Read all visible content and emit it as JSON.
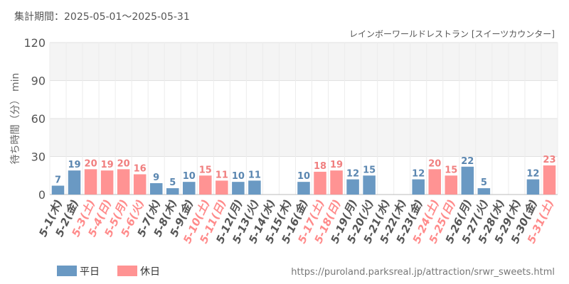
{
  "header": {
    "period": "集計期間：2025-05-01～2025-05-31",
    "subtitle": "レインボーワールドレストラン [スイーツカウンター]",
    "ylabel": "待ち時間（分） min"
  },
  "legend": {
    "weekday": "平日",
    "holiday": "休日"
  },
  "footer": {
    "url": "https://puroland.parksreal.jp/attraction/srwr_sweets.html"
  },
  "colors": {
    "weekday_bar": "#6a99c3",
    "holiday_bar": "#ff9393",
    "weekday_text": "#555555",
    "holiday_text": "#ff8a8a",
    "value_weekday": "#5a86b0",
    "value_holiday": "#f07f7f"
  },
  "chart_data": {
    "type": "bar",
    "ylim": [
      0,
      120
    ],
    "yticks": [
      0,
      30,
      60,
      90,
      120
    ],
    "ylabel": "待ち時間（分） min",
    "categories": [
      "5-1(木)",
      "5-2(金)",
      "5-3(土)",
      "5-4(日)",
      "5-5(月)",
      "5-6(火)",
      "5-7(水)",
      "5-8(木)",
      "5-9(金)",
      "5-10(土)",
      "5-11(日)",
      "5-12(月)",
      "5-13(火)",
      "5-14(水)",
      "5-15(木)",
      "5-16(金)",
      "5-17(土)",
      "5-18(日)",
      "5-19(月)",
      "5-20(火)",
      "5-21(水)",
      "5-22(木)",
      "5-23(金)",
      "5-24(土)",
      "5-25(日)",
      "5-26(月)",
      "5-27(火)",
      "5-28(水)",
      "5-29(木)",
      "5-30(金)",
      "5-31(土)"
    ],
    "holiday": [
      false,
      false,
      true,
      true,
      true,
      true,
      false,
      false,
      false,
      true,
      true,
      false,
      false,
      false,
      false,
      false,
      true,
      true,
      false,
      false,
      false,
      false,
      false,
      true,
      true,
      false,
      false,
      false,
      false,
      false,
      true
    ],
    "values": [
      7,
      19,
      20,
      19,
      20,
      16,
      9,
      5,
      10,
      15,
      11,
      10,
      11,
      null,
      null,
      10,
      18,
      19,
      12,
      15,
      null,
      null,
      12,
      20,
      15,
      22,
      5,
      null,
      null,
      12,
      23
    ],
    "series": [
      {
        "name": "平日",
        "color": "#6a99c3"
      },
      {
        "name": "休日",
        "color": "#ff9393"
      }
    ],
    "grid": true
  }
}
